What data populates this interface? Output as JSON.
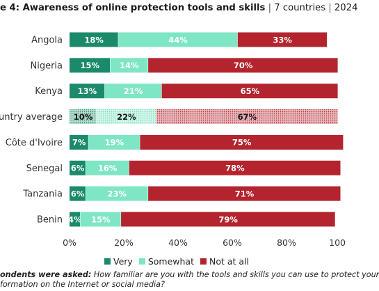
{
  "title_main": "e 4: Awareness of online protection tools and skills",
  "title_sep": " | ",
  "title_countries": "7 countries",
  "title_year": "2024",
  "colors": {
    "very": "#1a8a6a",
    "somewhat": "#7ee6c4",
    "not_at_all": "#b3242e",
    "axis_text": "#333333",
    "grid": "#dddddd"
  },
  "legend": [
    {
      "key": "very",
      "label": "Very"
    },
    {
      "key": "somewhat",
      "label": "Somewhat"
    },
    {
      "key": "not_at_all",
      "label": "Not at all"
    }
  ],
  "footnote": {
    "lead": "ondents were asked:",
    "line1": " How familiar are you with the tools and skills you can use to protect your",
    "line2": "formation on the Internet or social media?"
  },
  "chart_data": {
    "type": "bar",
    "orientation": "horizontal",
    "stacked": true,
    "categories": [
      "Angola",
      "Nigeria",
      "Kenya",
      "ountry average",
      "Côte d'Ivoire",
      "Senegal",
      "Tanzania",
      "Benin"
    ],
    "x_ticks": [
      "0%",
      "20%",
      "40%",
      "60%",
      "80%",
      "100"
    ],
    "xlim": [
      0,
      100
    ],
    "grid": false,
    "legend_position": "bottom",
    "highlighted_category": "ountry average",
    "series": [
      {
        "name": "Very",
        "key": "very",
        "values": [
          18,
          15,
          13,
          10,
          7,
          6,
          6,
          4
        ],
        "labels": [
          "18%",
          "15%",
          "13%",
          "10%",
          "7%",
          "6%",
          "6%",
          "4%"
        ]
      },
      {
        "name": "Somewhat",
        "key": "somewhat",
        "values": [
          44,
          14,
          21,
          22,
          19,
          16,
          23,
          15
        ],
        "labels": [
          "44%",
          "14%",
          "21%",
          "22%",
          "19%",
          "16%",
          "23%",
          "15%"
        ]
      },
      {
        "name": "Not at all",
        "key": "not_at_all",
        "values": [
          33,
          70,
          65,
          67,
          75,
          78,
          71,
          79
        ],
        "labels": [
          "33%",
          "70%",
          "65%",
          "67%",
          "75%",
          "78%",
          "71%",
          "79%"
        ]
      }
    ]
  }
}
